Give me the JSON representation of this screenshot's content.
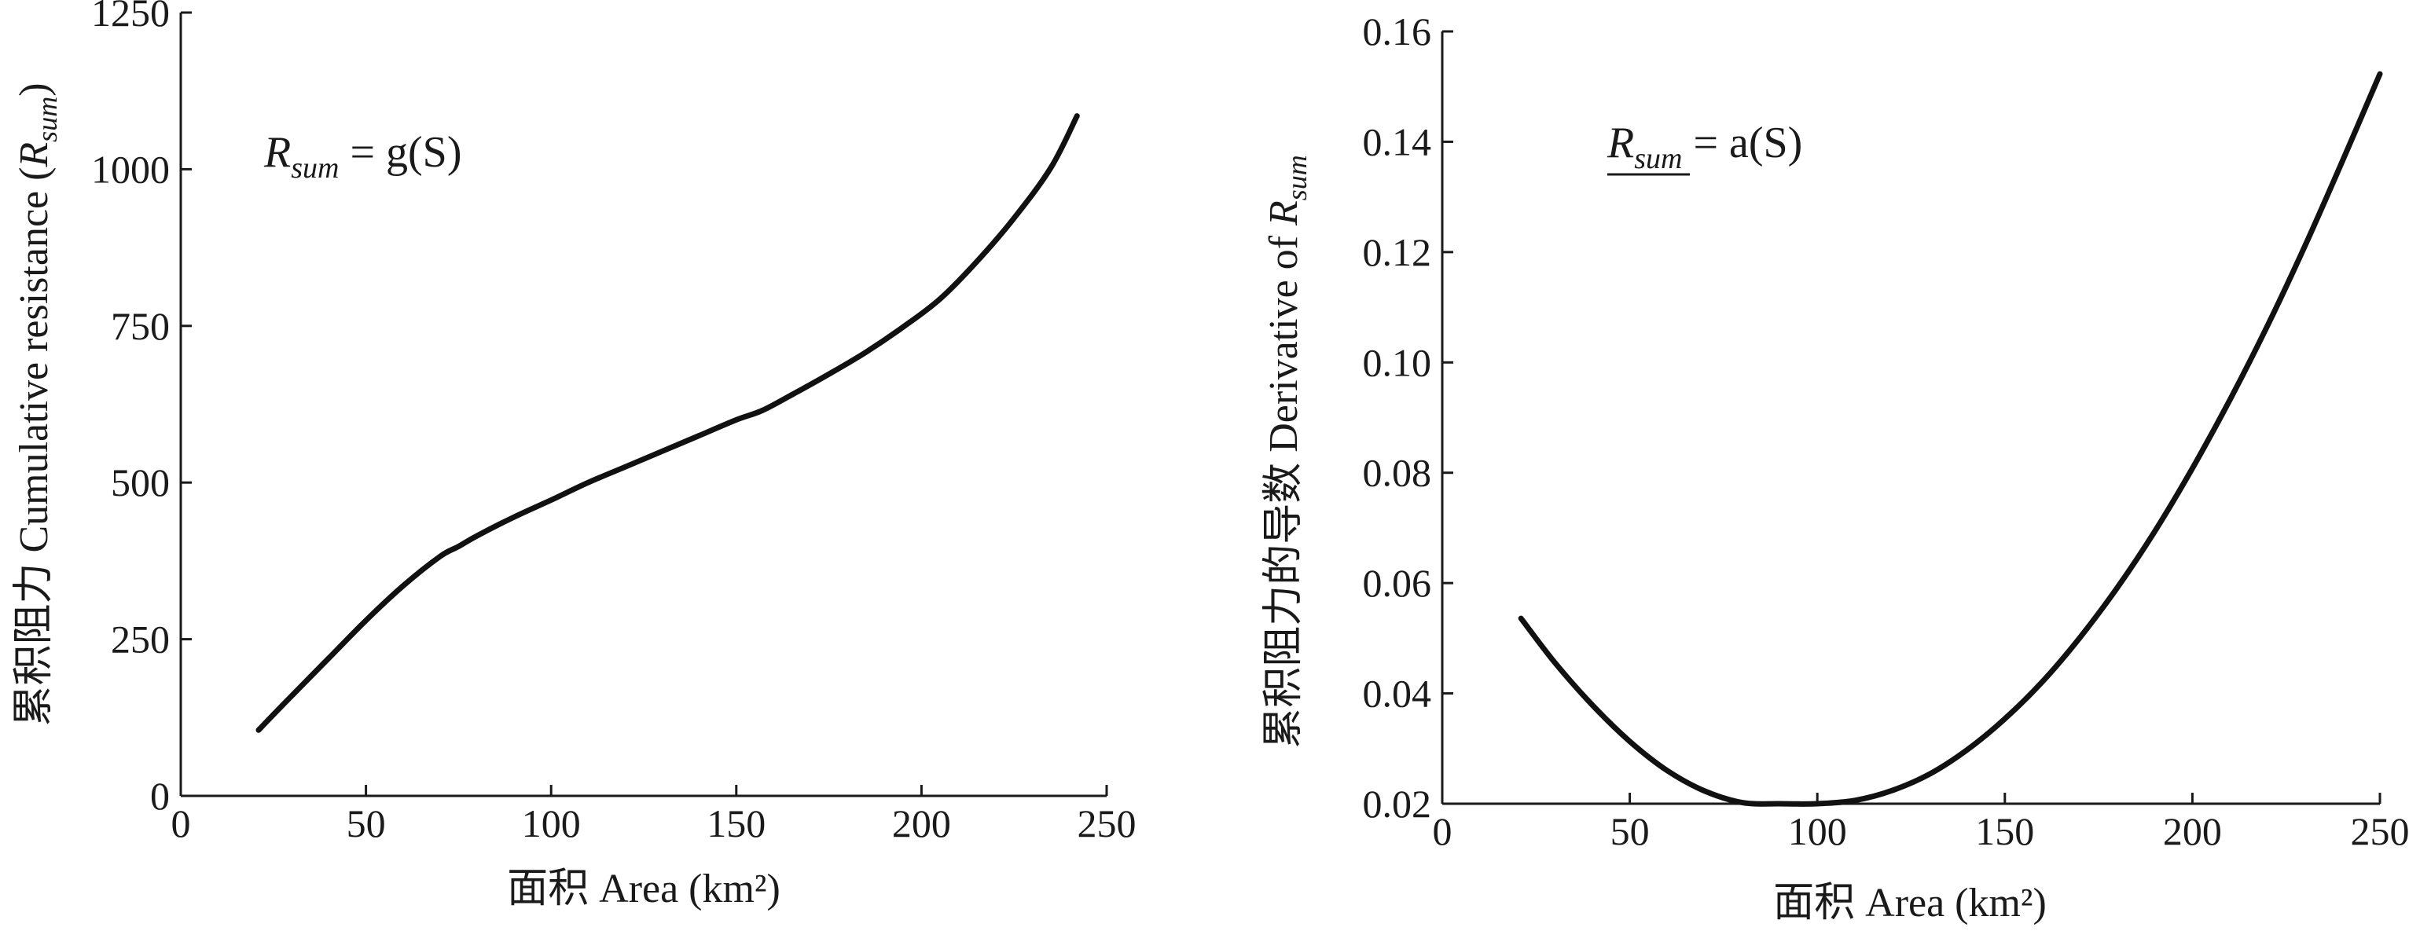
{
  "chart_data": [
    {
      "type": "line",
      "title": "",
      "xlabel": "面积 Area (km²)",
      "ylabel": "累积阻力 Cumulative resistance (Rsum)",
      "ylabel_parts": {
        "prefix": "累积阻力 Cumulative resistance (",
        "symbol": "R",
        "subscript": "sum",
        "suffix": ")"
      },
      "xlim": [
        0,
        250
      ],
      "ylim": [
        0,
        1250
      ],
      "xticks": [
        0,
        50,
        100,
        150,
        200,
        250
      ],
      "yticks": [
        0,
        250,
        500,
        750,
        1000,
        1250
      ],
      "grid": false,
      "annotation": {
        "symbol": "R",
        "subscript": "sum",
        "rest": " = g(S)"
      },
      "series": [
        {
          "name": "Rsum = g(S)",
          "x": [
            21,
            30,
            40,
            50,
            60,
            70,
            75,
            80,
            90,
            100,
            110,
            120,
            130,
            140,
            150,
            157,
            165,
            175,
            185,
            195,
            205,
            215,
            225,
            235,
            242
          ],
          "y": [
            105,
            160,
            220,
            280,
            335,
            382,
            398,
            415,
            445,
            472,
            500,
            525,
            550,
            575,
            600,
            615,
            640,
            673,
            708,
            748,
            793,
            853,
            922,
            1003,
            1085
          ]
        }
      ]
    },
    {
      "type": "line",
      "title": "",
      "xlabel": "面积 Area (km²)",
      "ylabel": "累积阻力的导数 Derivative of Rsum",
      "ylabel_parts": {
        "prefix": "累积阻力的导数 Derivative of ",
        "symbol": "R",
        "subscript": "sum",
        "suffix": ""
      },
      "xlim": [
        0,
        250
      ],
      "ylim": [
        0.02,
        0.16
      ],
      "xticks": [
        0,
        50,
        100,
        150,
        200,
        250
      ],
      "yticks": [
        0.02,
        0.04,
        0.06,
        0.08,
        0.1,
        0.12,
        0.14,
        0.16
      ],
      "ytick_labels": [
        "0.02",
        "0.04",
        "0.06",
        "0.08",
        "0.10",
        "0.12",
        "0.14",
        "0.16"
      ],
      "grid": false,
      "annotation": {
        "symbol": "R",
        "subscript": "sum",
        "rest": " = a(S)"
      },
      "series": [
        {
          "name": "Rsum' = a(S)",
          "x": [
            21,
            30,
            40,
            50,
            60,
            70,
            80,
            90,
            100,
            110,
            120,
            130,
            140,
            150,
            160,
            170,
            180,
            190,
            200,
            210,
            220,
            230,
            240,
            250
          ],
          "y": [
            0.0536,
            0.0456,
            0.0379,
            0.0313,
            0.026,
            0.0223,
            0.0202,
            0.02,
            0.02,
            0.0206,
            0.0224,
            0.0254,
            0.0298,
            0.0354,
            0.0421,
            0.0501,
            0.0592,
            0.0694,
            0.0808,
            0.0932,
            0.1066,
            0.1211,
            0.1365,
            0.1523
          ]
        }
      ]
    }
  ]
}
